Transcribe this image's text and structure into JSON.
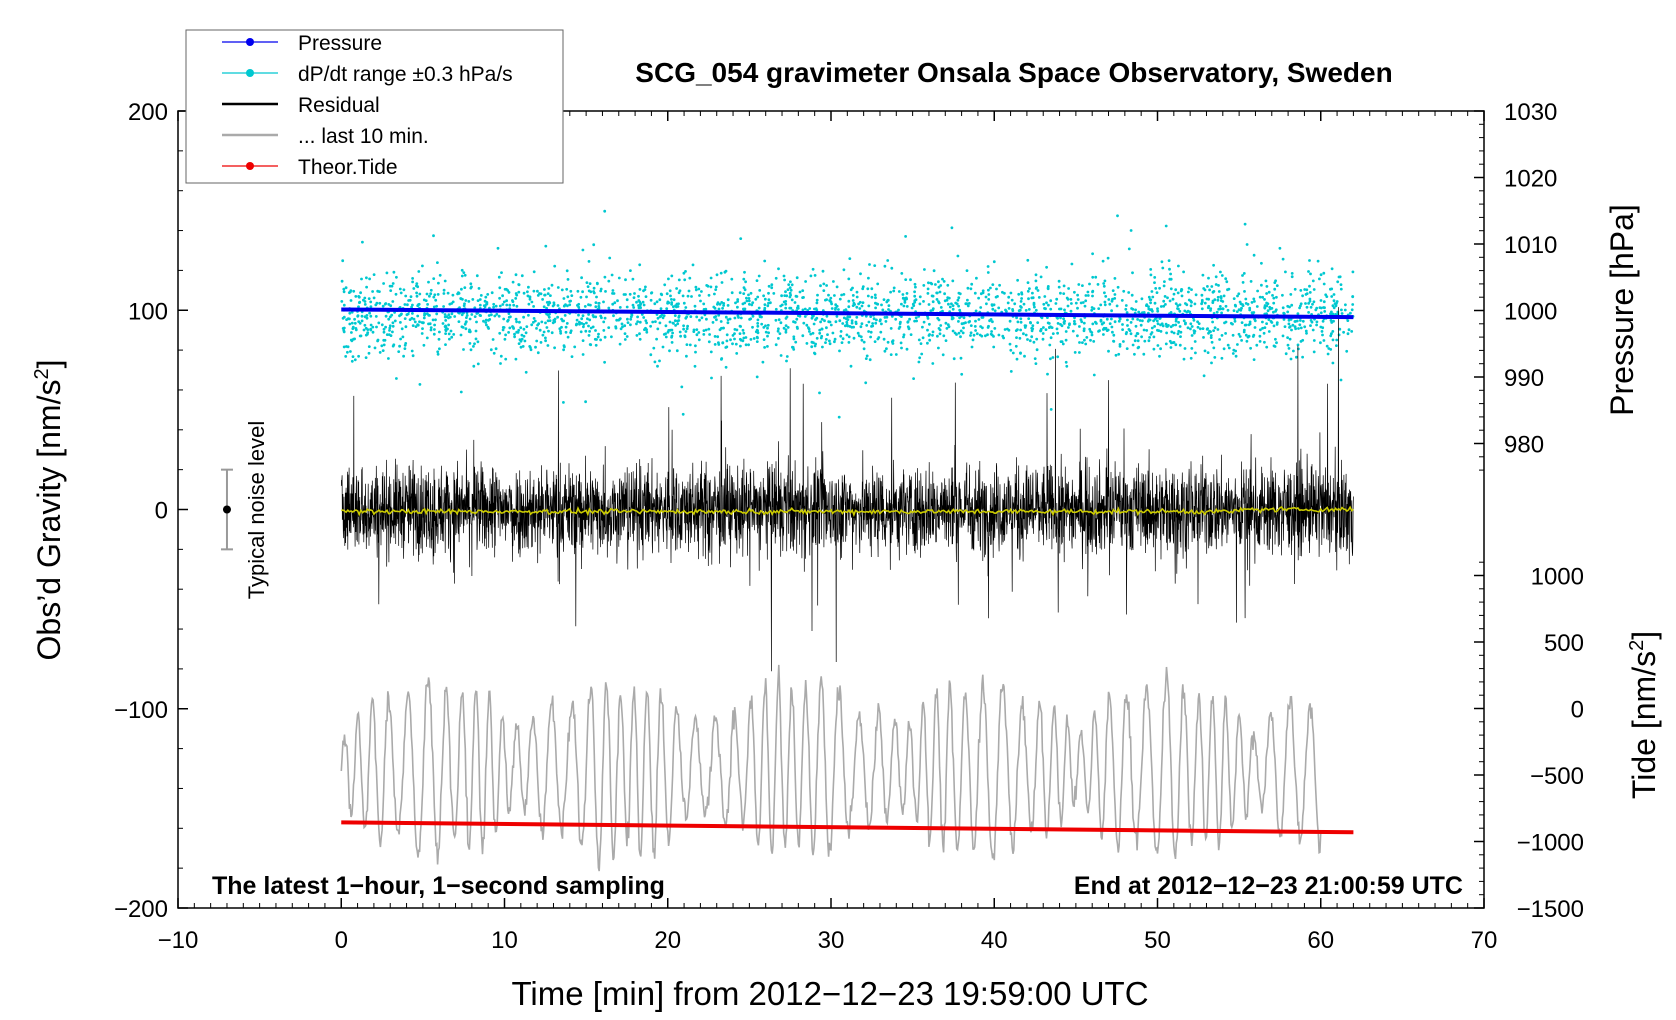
{
  "chart_data": {
    "type": "line",
    "title": "SCG_054 gravimeter Onsala Space Observatory, Sweden",
    "xlabel": "Time [min] from 2012−12−23 19:59:00 UTC",
    "ylabel": "Obs’d Gravity [nm/s",
    "ylabel_sup": "2",
    "ylabel_end": "]",
    "pressure_label": "Pressure [hPa]",
    "tide_label": "Tide [nm/s",
    "tide_label_sup": "2",
    "tide_label_end": "]",
    "xlim": [
      -10,
      70
    ],
    "ylim": [
      -200,
      200
    ],
    "pressure_lim": [
      970,
      1030
    ],
    "tide_lim": [
      -1500,
      1500
    ],
    "x_ticks": [
      "−10",
      "0",
      "10",
      "20",
      "30",
      "40",
      "50",
      "60",
      "70"
    ],
    "y_ticks": [
      "200",
      "100",
      "0",
      "−100",
      "−200"
    ],
    "pressure_ticks": [
      "1030",
      "1020",
      "1010",
      "1000",
      "990",
      "980"
    ],
    "tide_ticks": [
      "1000",
      "500",
      "0",
      "−500",
      "−1000",
      "−1500"
    ],
    "legend": [
      {
        "label": "Pressure",
        "color": "#0000ee",
        "marker": true
      },
      {
        "label": "dP/dt range ±0.3 hPa/s",
        "color": "#00c8d0",
        "marker": true
      },
      {
        "label": "Residual",
        "color": "#000000",
        "marker": false
      },
      {
        "label": "... last 10 min.",
        "color": "#aaaaaa",
        "marker": false
      },
      {
        "label": "Theor.Tide",
        "color": "#ee0000",
        "marker": true
      }
    ],
    "noise_label": "Typical noise level",
    "noise_range": [
      -20,
      20
    ],
    "noise_x": -7,
    "annotation_left": "The latest 1−hour, 1−second sampling",
    "annotation_right": "End at 2012−12−23 21:00:59 UTC",
    "series": [
      {
        "name": "Pressure",
        "color": "#0000ee",
        "start": [
          0,
          1000.0
        ],
        "end": [
          62,
          999.3
        ]
      },
      {
        "name": "dP/dt range ±0.3 hPa/s",
        "color": "#00c8d0",
        "center": 98,
        "spread": 30
      },
      {
        "name": "Residual",
        "color": "#000000",
        "center": 0,
        "amplitude": 60
      },
      {
        "name": "Residual smoothed",
        "color": "#cccc00",
        "center": -1
      },
      {
        "name": "... last 10 min.",
        "color": "#aaaaaa",
        "center": -130,
        "amplitude": 40,
        "x_range": [
          0,
          60
        ]
      },
      {
        "name": "Theor.Tide",
        "color": "#ee0000",
        "start": [
          0,
          -157
        ],
        "end": [
          62,
          -162
        ]
      }
    ]
  }
}
